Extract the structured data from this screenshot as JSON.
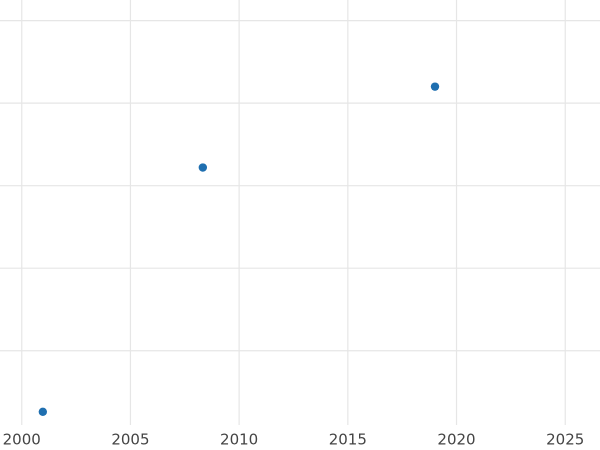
{
  "chart_data": {
    "type": "scatter",
    "x": [
      2000.97,
      2008.33,
      2019.01
    ],
    "values": [
      0.26,
      3.22,
      4.2
    ],
    "color": "#1f6fb0",
    "xlim": [
      1999,
      2026.6
    ],
    "xticks": [
      2000,
      2005,
      2010,
      2015,
      2020,
      2025
    ],
    "ylim": [
      0.1,
      5.25
    ],
    "yticks": [
      1,
      2,
      3,
      4,
      5
    ],
    "grid": true
  }
}
